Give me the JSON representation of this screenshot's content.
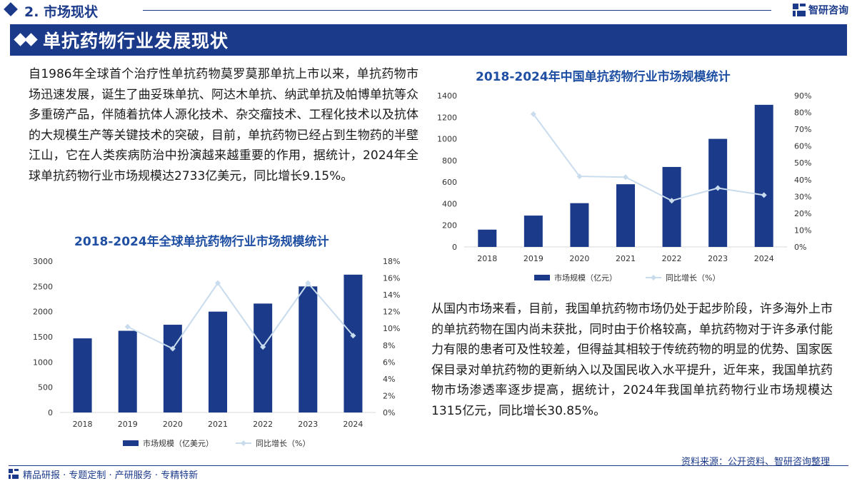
{
  "header": {
    "section_title": "2. 市场现状",
    "logo_text": "智研咨询",
    "banner_title": "单抗药物行业发展现状"
  },
  "body": {
    "para_global": "自1986年全球首个治疗性单抗药物莫罗莫那单抗上市以来，单抗药物市场迅速发展，诞生了曲妥珠单抗、阿达木单抗、纳武单抗及帕博单抗等众多重磅产品，伴随着抗体人源化技术、杂交瘤技术、工程化技术以及抗体的大规模生产等关键技术的突破，目前，单抗药物已经占到生物药的半壁江山，它在人类疾病防治中扮演越来越重要的作用，据统计，2024年全球单抗药物行业市场规模达2733亿美元，同比增长9.15%。",
    "para_china": "从国内市场来看，目前，我国单抗药物市场仍处于起步阶段，许多海外上市的单抗药物在国内尚未获批，同时由于价格较高，单抗药物对于许多承付能力有限的患者可及性较差，但得益其相较于传统药物的明显的优势、国家医保目录对单抗药物的更新纳入以及国民收入水平提升，近年来，我国单抗药物市场渗透率逐步提高，据统计，2024年我国单抗药物行业市场规模达1315亿元，同比增长30.85%。"
  },
  "footer": {
    "source": "资料来源：公开资料、智研咨询整理",
    "tagline": "精品研报 · 专题定制 · 产研服务 · 专精特新"
  },
  "colors": {
    "primary": "#1b3a8a",
    "bar": "#1b3a8a",
    "line": "#c9dcee",
    "title": "#1f4fa3"
  },
  "chart_data": [
    {
      "id": "global",
      "type": "bar+line",
      "title": "2018-2024年全球单抗药物行业市场规模统计",
      "categories": [
        "2018",
        "2019",
        "2020",
        "2021",
        "2022",
        "2023",
        "2024"
      ],
      "series": [
        {
          "name": "市场规模（亿美元）",
          "type": "bar",
          "axis": "left",
          "values": [
            1470,
            1620,
            1740,
            2000,
            2160,
            2500,
            2733
          ]
        },
        {
          "name": "同比增长（%）",
          "type": "line",
          "axis": "right",
          "values": [
            null,
            10.2,
            7.6,
            15.4,
            7.8,
            15.4,
            9.15
          ]
        }
      ],
      "y_left": {
        "min": 0,
        "max": 3000,
        "ticks": [
          0,
          500,
          1000,
          1500,
          2000,
          2500,
          3000
        ]
      },
      "y_right": {
        "min": 0,
        "max": 18,
        "ticks": [
          "0%",
          "2%",
          "4%",
          "6%",
          "8%",
          "10%",
          "12%",
          "14%",
          "16%",
          "18%"
        ]
      },
      "legend": "bottom-center"
    },
    {
      "id": "china",
      "type": "bar+line",
      "title": "2018-2024年中国单抗药物行业市场规模统计",
      "categories": [
        "2018",
        "2019",
        "2020",
        "2021",
        "2022",
        "2023",
        "2024"
      ],
      "series": [
        {
          "name": "市场规模（亿元）",
          "type": "bar",
          "axis": "left",
          "values": [
            160,
            290,
            405,
            580,
            740,
            1000,
            1315
          ]
        },
        {
          "name": "同比增长（%）",
          "type": "line",
          "axis": "right",
          "values": [
            null,
            79,
            42,
            41.5,
            27.5,
            35,
            30.85
          ]
        }
      ],
      "y_left": {
        "min": 0,
        "max": 1400,
        "ticks": [
          0,
          200,
          400,
          600,
          800,
          1000,
          1200,
          1400
        ]
      },
      "y_right": {
        "min": 0,
        "max": 90,
        "ticks": [
          "0%",
          "10%",
          "20%",
          "30%",
          "40%",
          "50%",
          "60%",
          "70%",
          "80%",
          "90%"
        ]
      },
      "legend": "bottom-center"
    }
  ]
}
